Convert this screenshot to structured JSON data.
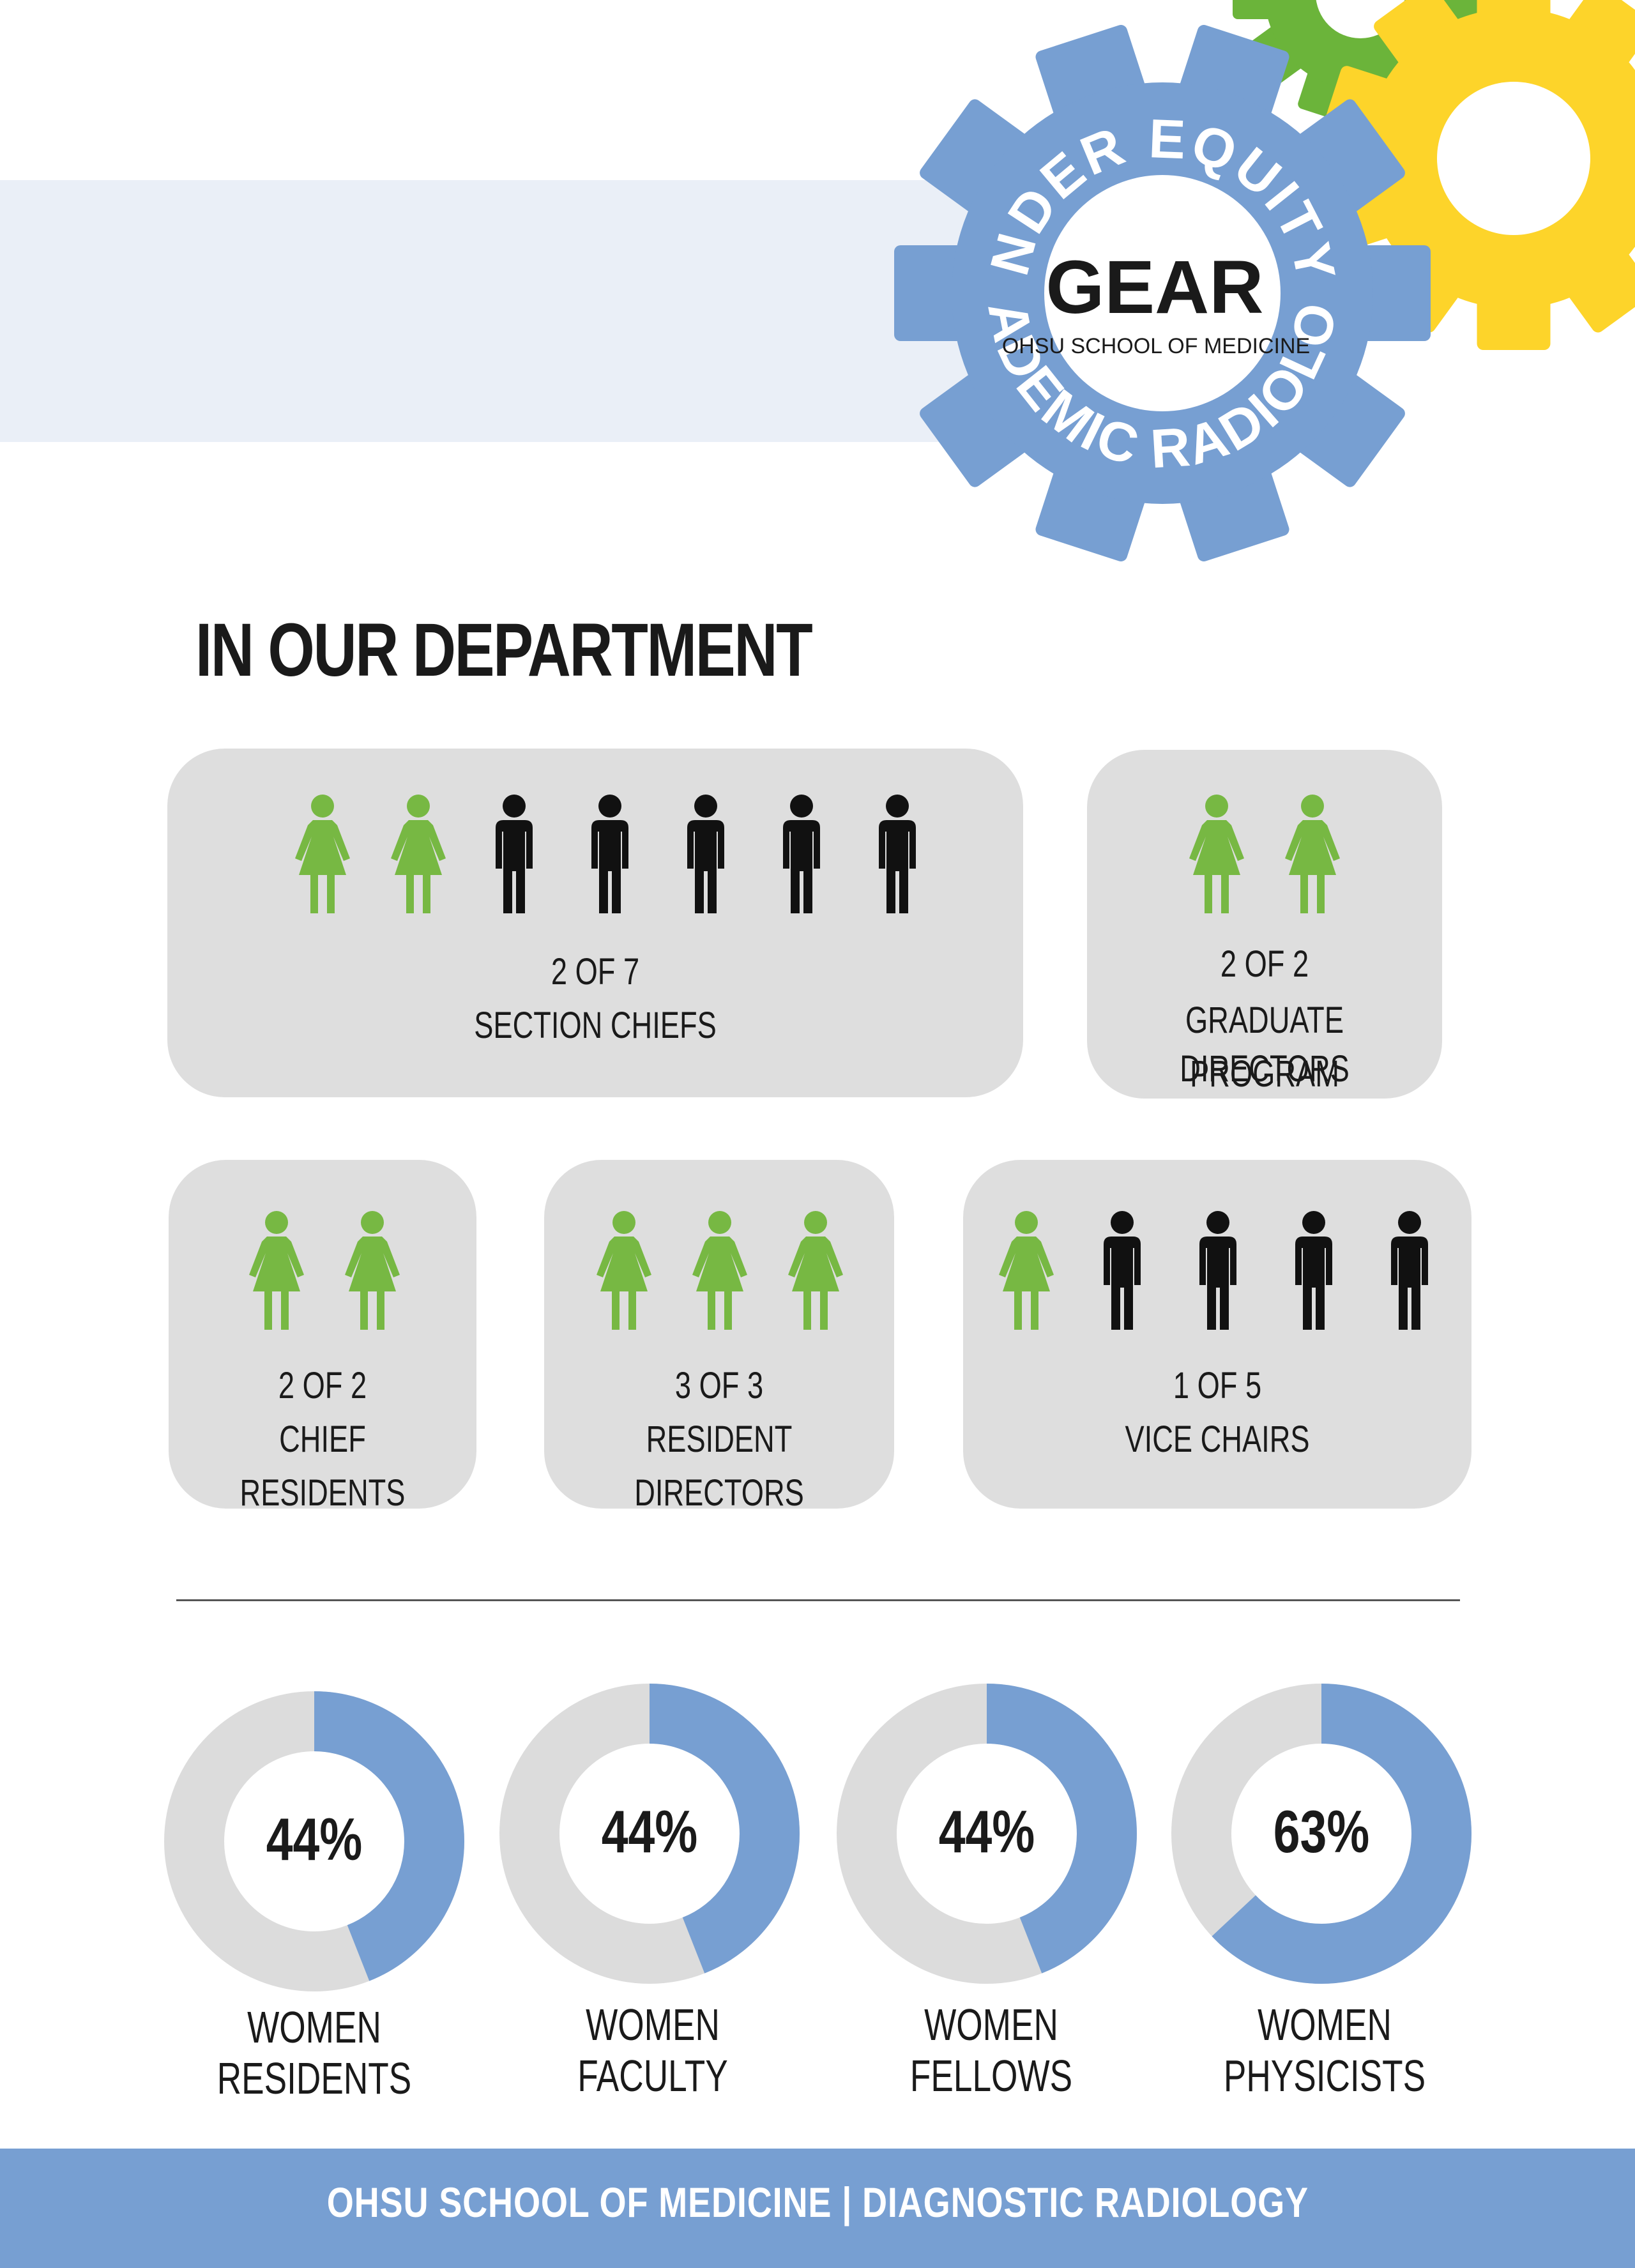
{
  "logo": {
    "acronym": "GEAR",
    "institution": "OHSU SCHOOL OF MEDICINE",
    "arc_top": "GENDER EQUITY IN",
    "arc_bottom": "ACADEMIC RADIOLOGY",
    "colors": {
      "main_gear": "#779fd2",
      "green_gear": "#6bb43a",
      "yellow_gear": "#fdd42a"
    }
  },
  "heading": "IN OUR DEPARTMENT",
  "colors": {
    "woman": "#77b843",
    "man": "#111111",
    "card": "#dedede",
    "donut_fill": "#779fd2",
    "donut_rest": "#dcdcdc"
  },
  "cards": [
    {
      "figures": [
        "woman",
        "woman",
        "man",
        "man",
        "man",
        "man",
        "man"
      ],
      "count": "2 OF 7",
      "role": [
        "SECTION CHIEFS"
      ]
    },
    {
      "figures": [
        "woman",
        "woman"
      ],
      "count": "2 OF 2",
      "role": [
        "GRADUATE PROGRAM",
        "DIRECTORS"
      ]
    },
    {
      "figures": [
        "woman",
        "woman"
      ],
      "count": "2 OF 2",
      "role": [
        "CHIEF RESIDENTS"
      ]
    },
    {
      "figures": [
        "woman",
        "woman",
        "woman"
      ],
      "count": "3 OF 3",
      "role": [
        "RESIDENT DIRECTORS"
      ]
    },
    {
      "figures": [
        "woman",
        "man",
        "man",
        "man",
        "man"
      ],
      "count": "1 OF 5",
      "role": [
        "VICE CHAIRS"
      ]
    }
  ],
  "stats": [
    {
      "percent": "44%",
      "value": 44,
      "label": "WOMEN RESIDENTS"
    },
    {
      "percent": "44%",
      "value": 44,
      "label": "WOMEN FACULTY"
    },
    {
      "percent": "44%",
      "value": 44,
      "label": "WOMEN FELLOWS"
    },
    {
      "percent": "63%",
      "value": 63,
      "label": "WOMEN PHYSICISTS"
    }
  ],
  "footer": "OHSU SCHOOL OF MEDICINE | DIAGNOSTIC RADIOLOGY"
}
